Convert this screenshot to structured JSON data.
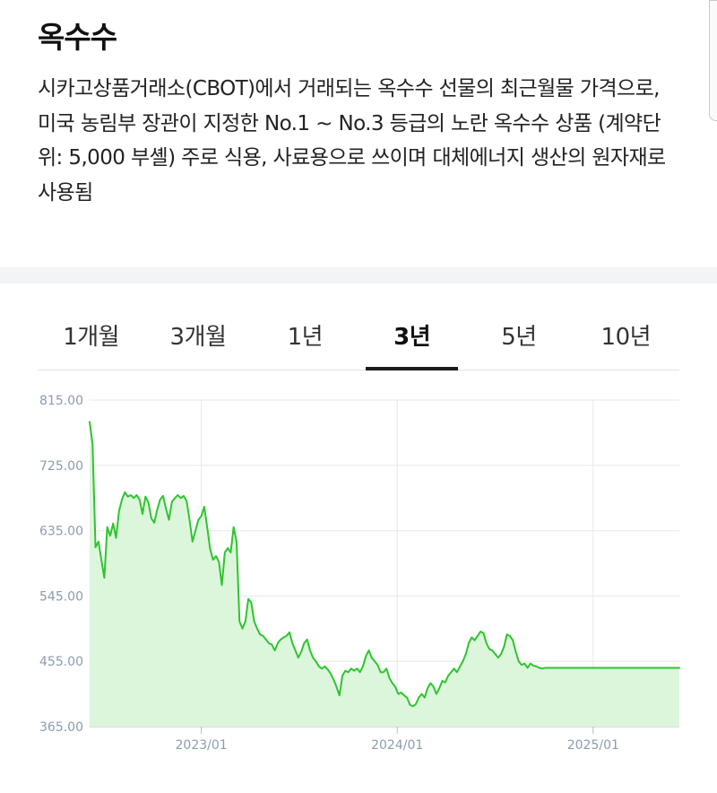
{
  "header": {
    "title": "옥수수",
    "description": "시카고상품거래소(CBOT)에서 거래되는 옥수수 선물의 최근월물 가격으로, 미국 농림부 장관이 지정한 No.1 ~ No.3 등급의 노란 옥수수 상품 (계약단위: 5,000 부셸) 주로 식용, 사료용으로 쓰이며 대체에너지 생산의 원자재로 사용됨"
  },
  "tabs": [
    {
      "label": "1개월",
      "active": false
    },
    {
      "label": "3개월",
      "active": false
    },
    {
      "label": "1년",
      "active": false
    },
    {
      "label": "3년",
      "active": true
    },
    {
      "label": "5년",
      "active": false
    },
    {
      "label": "10년",
      "active": false
    }
  ],
  "colors": {
    "line": "#2ec52e",
    "fill": "#dcf6dc",
    "grid": "#e8e8e8",
    "axis_text": "#8c9bb0"
  },
  "chart_data": {
    "type": "area",
    "ylim": [
      365,
      815
    ],
    "yticks": [
      "815.00",
      "725.00",
      "635.00",
      "545.00",
      "455.00",
      "365.00"
    ],
    "xticks": [
      {
        "label": "2023/01",
        "x": 2023.0
      },
      {
        "label": "2024/01",
        "x": 2024.0
      },
      {
        "label": "2025/01",
        "x": 2025.0
      }
    ],
    "xlim": [
      2022.43,
      2025.44
    ],
    "x": [
      2022.43,
      2022.445,
      2022.46,
      2022.475,
      2022.49,
      2022.505,
      2022.52,
      2022.535,
      2022.55,
      2022.565,
      2022.58,
      2022.595,
      2022.61,
      2022.625,
      2022.64,
      2022.655,
      2022.67,
      2022.685,
      2022.7,
      2022.715,
      2022.73,
      2022.745,
      2022.76,
      2022.775,
      2022.79,
      2022.805,
      2022.82,
      2022.835,
      2022.85,
      2022.865,
      2022.88,
      2022.895,
      2022.91,
      2022.925,
      2022.94,
      2022.955,
      2022.97,
      2022.985,
      2023.0,
      2023.015,
      2023.03,
      2023.045,
      2023.06,
      2023.075,
      2023.09,
      2023.105,
      2023.12,
      2023.135,
      2023.15,
      2023.165,
      2023.18,
      2023.195,
      2023.21,
      2023.225,
      2023.24,
      2023.255,
      2023.27,
      2023.285,
      2023.3,
      2023.315,
      2023.33,
      2023.345,
      2023.36,
      2023.375,
      2023.39,
      2023.405,
      2023.42,
      2023.435,
      2023.45,
      2023.465,
      2023.48,
      2023.495,
      2023.51,
      2023.525,
      2023.54,
      2023.555,
      2023.57,
      2023.585,
      2023.6,
      2023.615,
      2023.63,
      2023.645,
      2023.66,
      2023.675,
      2023.69,
      2023.705,
      2023.72,
      2023.735,
      2023.75,
      2023.765,
      2023.78,
      2023.795,
      2023.81,
      2023.825,
      2023.84,
      2023.855,
      2023.87,
      2023.885,
      2023.9,
      2023.915,
      2023.93,
      2023.945,
      2023.96,
      2023.975,
      2023.99,
      2024.005,
      2024.02,
      2024.035,
      2024.05,
      2024.065,
      2024.08,
      2024.095,
      2024.11,
      2024.125,
      2024.14,
      2024.155,
      2024.17,
      2024.185,
      2024.2,
      2024.215,
      2024.23,
      2024.245,
      2024.26,
      2024.275,
      2024.29,
      2024.305,
      2024.32,
      2024.335,
      2024.35,
      2024.365,
      2024.38,
      2024.395,
      2024.41,
      2024.425,
      2024.44,
      2024.455,
      2024.47,
      2024.485,
      2024.5,
      2024.515,
      2024.53,
      2024.545,
      2024.56,
      2024.575,
      2024.59,
      2024.605,
      2024.62,
      2024.635,
      2024.65,
      2024.665,
      2024.68,
      2024.695,
      2024.71,
      2024.725,
      2024.74,
      2024.755,
      2024.77,
      2024.785,
      2024.8,
      2024.815,
      2024.83,
      2024.845,
      2024.86,
      2024.875,
      2024.89,
      2024.905,
      2024.92,
      2024.935,
      2024.95,
      2024.965,
      2024.98,
      2024.995,
      2025.01,
      2025.025,
      2025.04,
      2025.055,
      2025.07,
      2025.085,
      2025.1,
      2025.115,
      2025.13,
      2025.145,
      2025.16,
      2025.175,
      2025.19,
      2025.205,
      2025.22,
      2025.235,
      2025.25,
      2025.265,
      2025.28,
      2025.295,
      2025.31,
      2025.325,
      2025.34,
      2025.355,
      2025.37,
      2025.385,
      2025.4,
      2025.415,
      2025.44
    ],
    "series": [
      {
        "values": [
          785,
          755,
          612,
          620,
          595,
          570,
          640,
          628,
          645,
          625,
          662,
          678,
          688,
          682,
          684,
          680,
          684,
          678,
          658,
          682,
          674,
          652,
          646,
          664,
          678,
          683,
          665,
          650,
          675,
          680,
          684,
          680,
          683,
          676,
          650,
          620,
          635,
          650,
          655,
          668,
          640,
          610,
          595,
          600,
          592,
          560,
          605,
          611,
          605,
          640,
          620,
          510,
          500,
          510,
          541,
          536,
          510,
          500,
          492,
          490,
          485,
          480,
          478,
          470,
          480,
          485,
          488,
          490,
          495,
          480,
          470,
          460,
          468,
          480,
          485,
          470,
          460,
          455,
          448,
          445,
          448,
          444,
          438,
          430,
          420,
          408,
          435,
          442,
          440,
          445,
          442,
          445,
          440,
          448,
          462,
          470,
          460,
          455,
          450,
          440,
          440,
          445,
          432,
          425,
          420,
          410,
          412,
          408,
          405,
          395,
          393,
          396,
          405,
          410,
          405,
          418,
          425,
          420,
          410,
          418,
          428,
          426,
          435,
          440,
          445,
          440,
          448,
          455,
          465,
          480,
          488,
          484,
          490,
          496,
          494,
          480,
          472,
          470,
          465,
          460,
          465,
          475,
          492,
          490,
          484,
          468,
          455,
          450,
          452,
          446,
          452,
          449,
          448,
          446,
          445,
          446,
          446,
          446,
          446,
          446,
          446,
          446,
          446,
          446,
          446,
          446,
          446,
          446,
          446,
          446,
          446,
          446,
          446,
          446,
          446,
          446,
          446,
          446,
          446,
          446,
          446,
          446,
          446,
          446,
          446,
          446,
          446,
          446,
          446,
          446,
          446,
          446,
          446,
          446,
          446,
          446,
          446,
          446,
          446,
          446,
          446
        ]
      }
    ]
  }
}
